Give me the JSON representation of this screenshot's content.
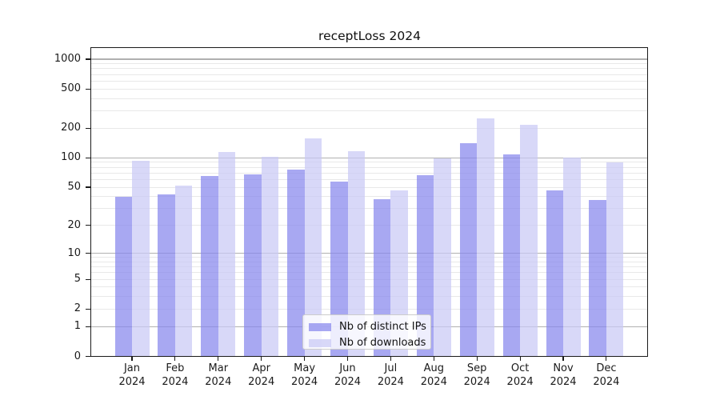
{
  "title": "receptLoss 2024",
  "colors": {
    "ips_fill": "rgba(135,135,237,0.72)",
    "ips_hex": "#aaaaf2",
    "downloads_fill": "rgba(201,201,245,0.72)",
    "downloads_hex": "#d8d8f8",
    "grid_major": "#b0b0b0",
    "grid_minor": "#e8e8e8",
    "spine": "#1a1a1a",
    "background": "#ffffff"
  },
  "chart_data": {
    "type": "bar",
    "title": "receptLoss 2024",
    "categories": [
      "Jan 2024",
      "Feb 2024",
      "Mar 2024",
      "Apr 2024",
      "May 2024",
      "Jun 2024",
      "Jul 2024",
      "Aug 2024",
      "Sep 2024",
      "Oct 2024",
      "Nov 2024",
      "Dec 2024"
    ],
    "series": [
      {
        "name": "Nb of distinct IPs",
        "values": [
          40,
          42,
          65,
          68,
          76,
          57,
          38,
          67,
          141,
          108,
          46,
          37
        ]
      },
      {
        "name": "Nb of downloads",
        "values": [
          93,
          52,
          115,
          102,
          157,
          117,
          46,
          98,
          251,
          218,
          101,
          90
        ]
      }
    ],
    "xlabel": "",
    "ylabel": "",
    "yscale": "log1p",
    "yticks": [
      0,
      1,
      2,
      5,
      10,
      20,
      50,
      100,
      200,
      500,
      1000
    ],
    "ylim": [
      0,
      1310
    ],
    "grid": "horizontal",
    "grid_major_at": [
      1,
      10,
      100,
      1000
    ],
    "legend_position": "lower-center"
  }
}
